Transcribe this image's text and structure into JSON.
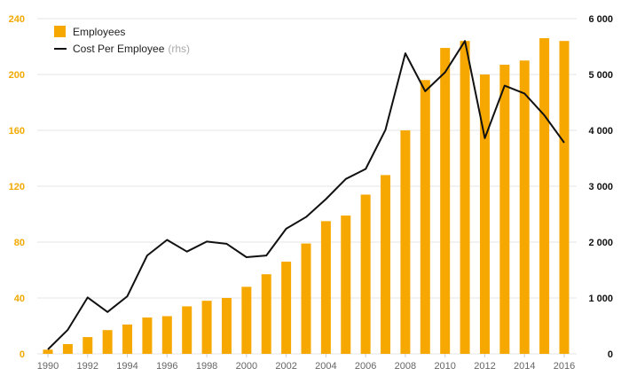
{
  "chart_data": {
    "type": "bar",
    "title": "",
    "xlabel": "",
    "ylabel": "",
    "x": [
      1990,
      1991,
      1992,
      1993,
      1994,
      1995,
      1996,
      1997,
      1998,
      1999,
      2000,
      2001,
      2002,
      2003,
      2004,
      2005,
      2006,
      2007,
      2008,
      2009,
      2010,
      2011,
      2012,
      2013,
      2014,
      2015,
      2016
    ],
    "x_tick_labels": [
      "1990",
      "1992",
      "1994",
      "1996",
      "1998",
      "2000",
      "2002",
      "2004",
      "2006",
      "2008",
      "2010",
      "2012",
      "2014",
      "2016"
    ],
    "ylim_left": [
      0,
      240
    ],
    "y_ticks_left": [
      "0",
      "40",
      "80",
      "120",
      "160",
      "200",
      "240"
    ],
    "ylim_right": [
      0,
      6000
    ],
    "y_ticks_right": [
      "0",
      "1 000",
      "2 000",
      "3 000",
      "4 000",
      "5 000",
      "6 000"
    ],
    "grid": true,
    "legend_position": "top-left",
    "series": [
      {
        "name": "Employees",
        "type": "bar",
        "axis": "left",
        "color": "#f7a800",
        "values": [
          3,
          7,
          12,
          17,
          21,
          26,
          27,
          34,
          38,
          40,
          48,
          57,
          66,
          79,
          95,
          99,
          114,
          128,
          160,
          196,
          219,
          224,
          200,
          207,
          210,
          226,
          224
        ]
      },
      {
        "name": "Cost Per Employee",
        "type": "line",
        "axis": "right",
        "color": "#111111",
        "values": [
          80,
          430,
          1010,
          750,
          1030,
          1760,
          2040,
          1830,
          2010,
          1970,
          1730,
          1760,
          2240,
          2450,
          2770,
          3130,
          3310,
          4010,
          5380,
          4700,
          5040,
          5600,
          3860,
          4800,
          4660,
          4270,
          3780
        ]
      }
    ],
    "legend": {
      "employees_label": "Employees",
      "cost_label": "Cost Per Employee",
      "cost_note": "(rhs)"
    }
  }
}
